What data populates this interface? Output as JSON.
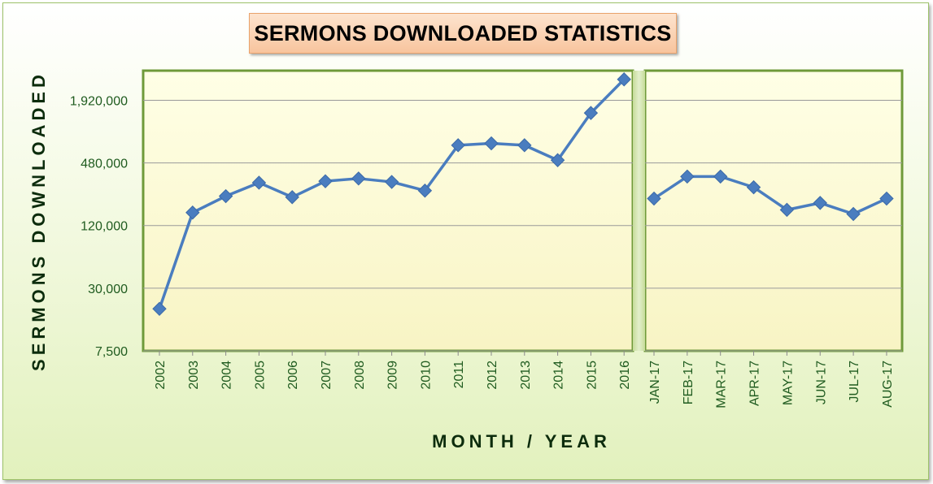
{
  "chart_data": {
    "type": "line",
    "title": "SERMONS DOWNLOADED STATISTICS",
    "xlabel": "MONTH / YEAR",
    "ylabel": "SERMONS DOWNLOADED",
    "yscale": "log",
    "ylim": [
      7500,
      3700000
    ],
    "yticks": [
      7500,
      30000,
      120000,
      480000,
      1920000
    ],
    "ytick_labels": [
      "7,500",
      "30,000",
      "120,000",
      "480,000",
      "1,920,000"
    ],
    "grid": true,
    "legend": "none",
    "panels": [
      {
        "categories": [
          "2002",
          "2003",
          "2004",
          "2005",
          "2006",
          "2007",
          "2008",
          "2009",
          "2010",
          "2011",
          "2012",
          "2013",
          "2014",
          "2015",
          "2016"
        ],
        "values": [
          19000,
          160000,
          230000,
          310000,
          225000,
          320000,
          340000,
          315000,
          260000,
          710000,
          740000,
          710000,
          510000,
          1450000,
          3050000
        ]
      },
      {
        "categories": [
          "JAN-17",
          "FEB-17",
          "MAR-17",
          "APR-17",
          "MAY-17",
          "JUN-17",
          "JUL-17",
          "AUG-17"
        ],
        "values": [
          218000,
          355000,
          355000,
          280000,
          170000,
          198000,
          155000,
          218000
        ]
      }
    ],
    "colors": {
      "line": "#4a7dbf",
      "marker": "#4a7dbf",
      "plot_fill": "#ffffd8",
      "plot_border": "#6f9a3a",
      "tick_text": "#1f5b1f",
      "axis_title": "#0c2c0c",
      "title_fill": "#f8c49d"
    }
  }
}
